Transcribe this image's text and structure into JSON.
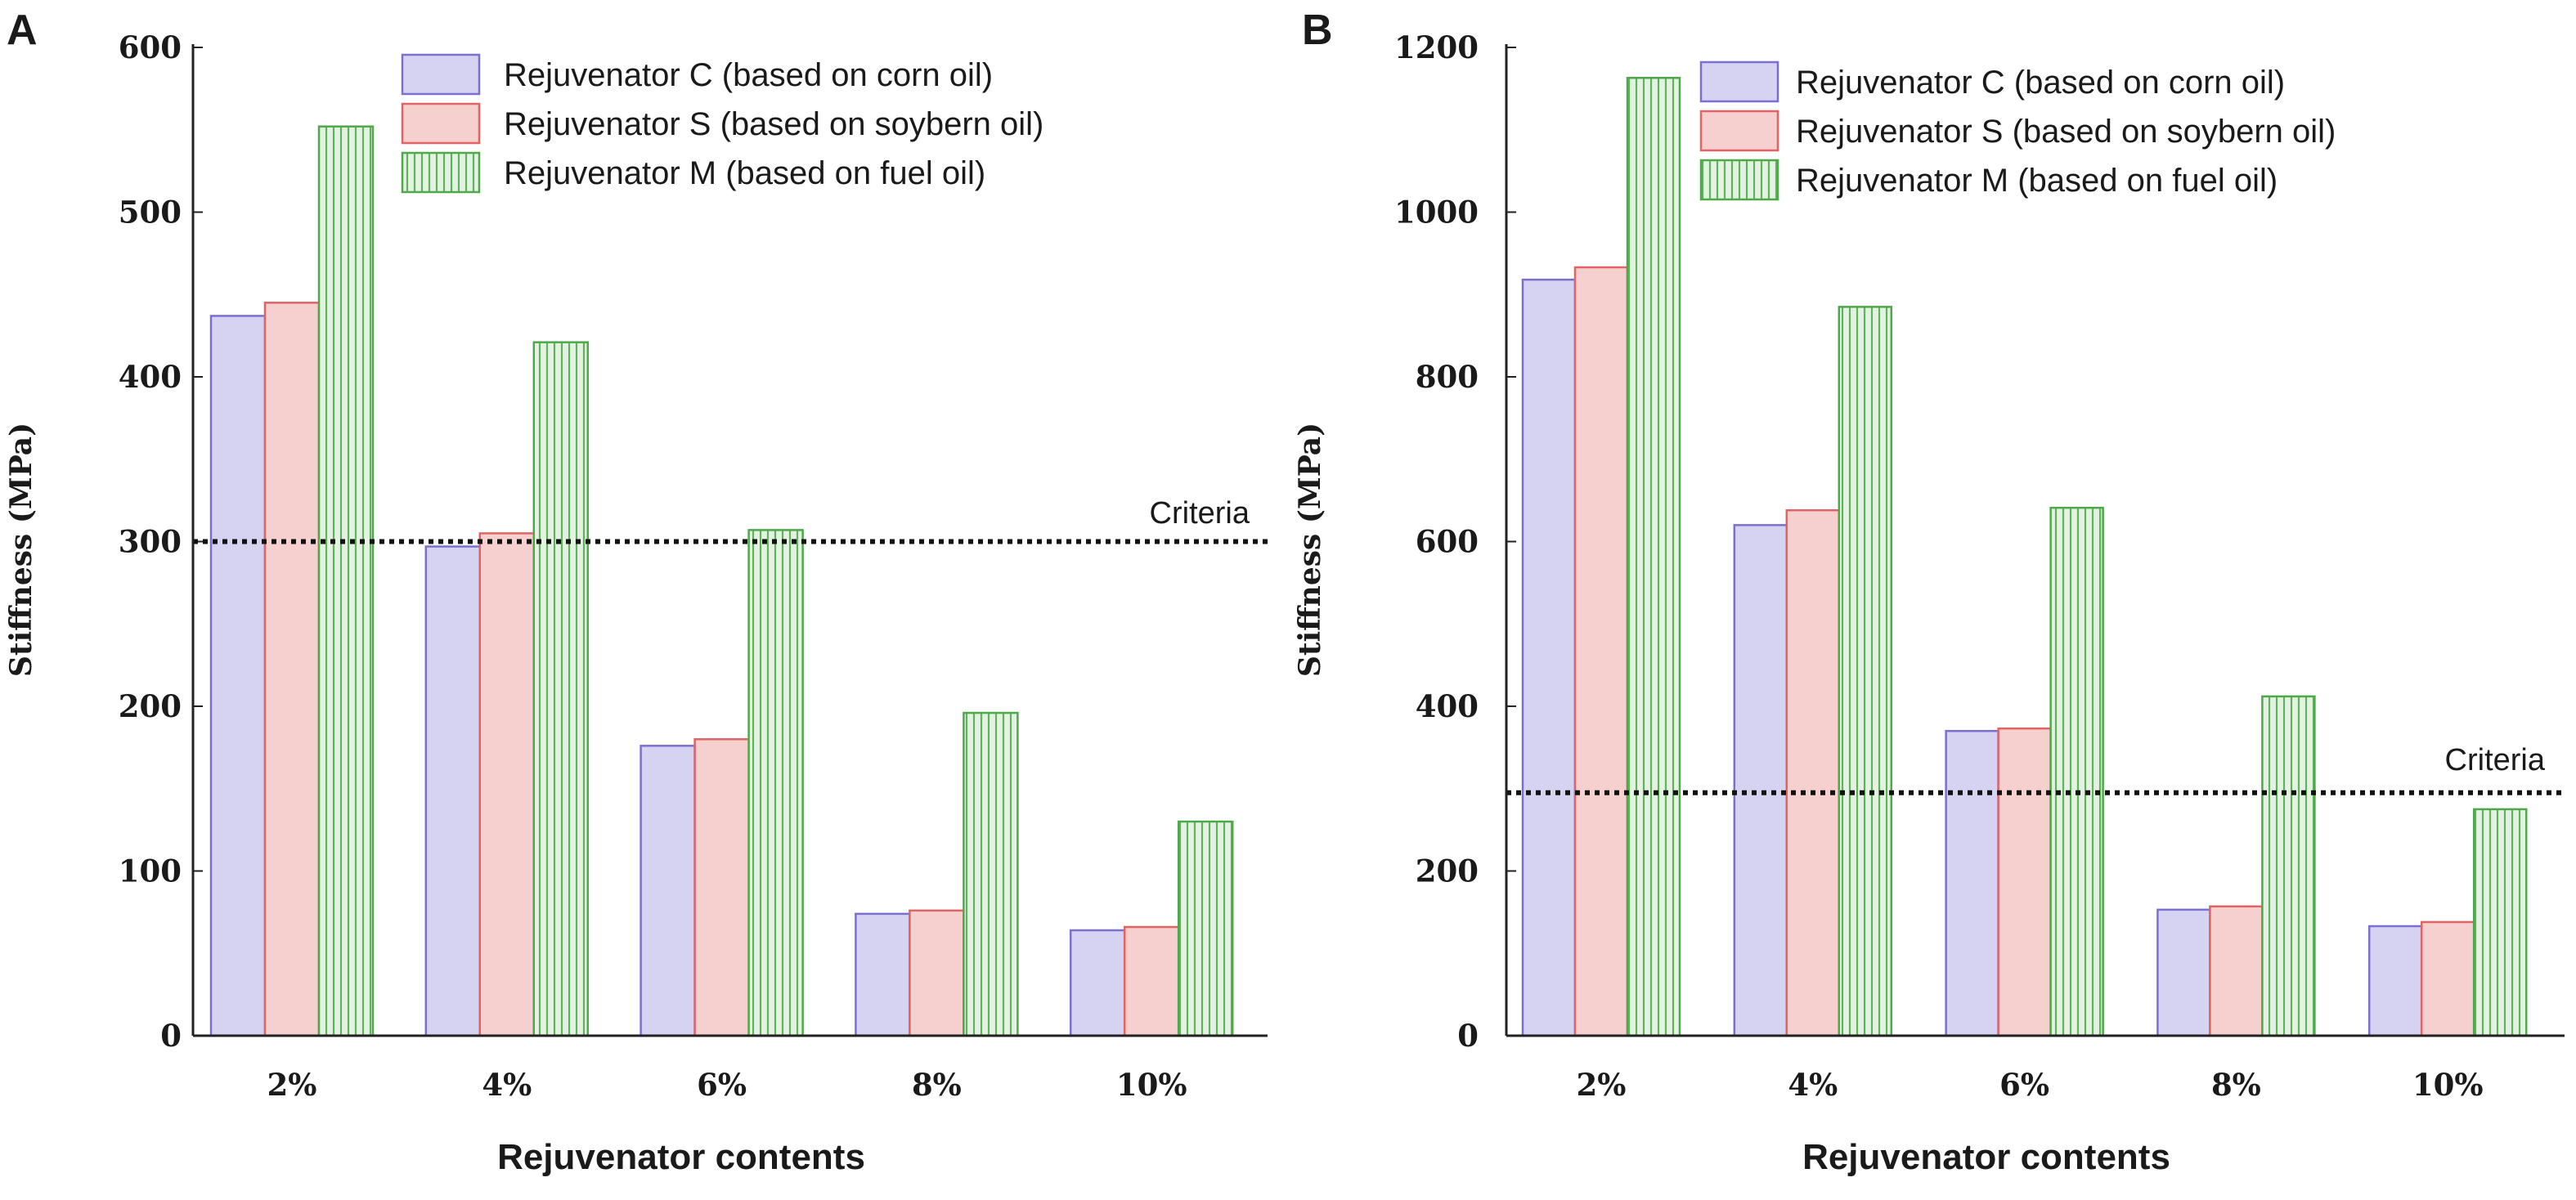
{
  "chart_data": [
    {
      "type": "bar",
      "panel_label": "A",
      "categories": [
        "2%",
        "4%",
        "6%",
        "8%",
        "10%"
      ],
      "series": [
        {
          "name": "Rejuvenator C (based on corn oil)",
          "values": [
            437,
            297,
            176,
            74,
            64
          ],
          "color": "#7b6fd0",
          "fill": "#d6d3f2",
          "hatch": false
        },
        {
          "name": "Rejuvenator S (based on soybern oil)",
          "values": [
            445,
            305,
            180,
            76,
            66
          ],
          "color": "#e06464",
          "fill": "#f6cfcf",
          "hatch": false
        },
        {
          "name": "Rejuvenator M (based on fuel oil)",
          "values": [
            552,
            421,
            307,
            196,
            130
          ],
          "color": "#4fa84a",
          "fill": "#d5ecd2",
          "hatch": true
        }
      ],
      "criteria": {
        "label": "Criteria",
        "value": 300
      },
      "xlabel": "Rejuvenator contents",
      "ylabel": "Stiffness (MPa)",
      "ylim": [
        0,
        600
      ],
      "yticks": [
        "0",
        "100",
        "200",
        "300",
        "400",
        "500",
        "600"
      ],
      "legend_position": "top-right"
    },
    {
      "type": "bar",
      "panel_label": "B",
      "categories": [
        "2%",
        "4%",
        "6%",
        "8%",
        "10%"
      ],
      "series": [
        {
          "name": "Rejuvenator C (based on corn oil)",
          "values": [
            918,
            620,
            370,
            153,
            133
          ],
          "color": "#7b6fd0",
          "fill": "#d6d3f2",
          "hatch": false
        },
        {
          "name": "Rejuvenator S (based on soybern oil)",
          "values": [
            933,
            638,
            373,
            157,
            138
          ],
          "color": "#e06464",
          "fill": "#f6cfcf",
          "hatch": false
        },
        {
          "name": "Rejuvenator M (based on fuel oil)",
          "values": [
            1163,
            885,
            641,
            412,
            275
          ],
          "color": "#4fa84a",
          "fill": "#d5ecd2",
          "hatch": true
        }
      ],
      "criteria": {
        "label": "Criteria",
        "value": 295
      },
      "xlabel": "Rejuvenator contents",
      "ylabel": "Stiffness (MPa)",
      "ylim": [
        0,
        1200
      ],
      "yticks": [
        "0",
        "200",
        "400",
        "600",
        "800",
        "1000",
        "1200"
      ],
      "legend_position": "top-right"
    }
  ]
}
